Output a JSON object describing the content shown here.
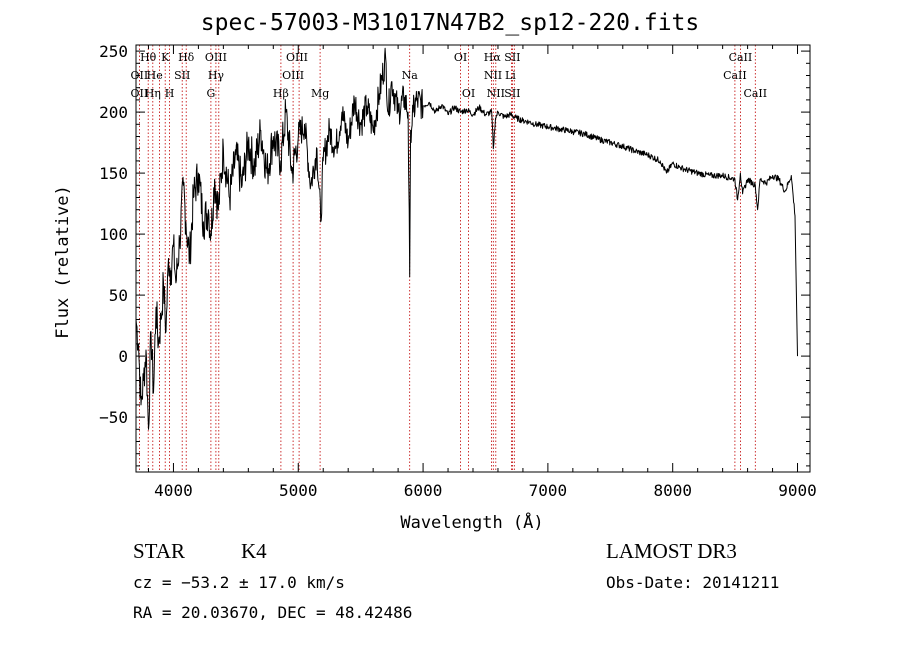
{
  "title": "spec-57003-M31017N47B2_sp12-220.fits",
  "object_class": "STAR",
  "subclass": "K4",
  "survey": "LAMOST DR3",
  "cz": "cz = −53.2 ± 17.0 km/s",
  "obs_date": "Obs-Date: 20141211",
  "radec": "RA =  20.03670, DEC =  48.42486",
  "chart_data": {
    "type": "line",
    "title": "spec-57003-M31017N47B2_sp12-220.fits",
    "xlabel": "Wavelength (Å)",
    "ylabel": "Flux (relative)",
    "xlim": [
      3700,
      9100
    ],
    "ylim": [
      -95,
      255
    ],
    "x_ticks": [
      4000,
      5000,
      6000,
      7000,
      8000,
      9000
    ],
    "y_ticks": [
      -50,
      0,
      50,
      100,
      150,
      200,
      250
    ],
    "y_tick_labels": [
      "−50",
      "0",
      "50",
      "100",
      "150",
      "200",
      "250"
    ],
    "series": [
      {
        "name": "flux",
        "x": [
          3700,
          3720,
          3740,
          3760,
          3780,
          3800,
          3820,
          3840,
          3860,
          3880,
          3900,
          3920,
          3940,
          3960,
          3980,
          4000,
          4020,
          4050,
          4080,
          4100,
          4130,
          4160,
          4200,
          4240,
          4280,
          4300,
          4330,
          4360,
          4400,
          4450,
          4500,
          4550,
          4600,
          4650,
          4700,
          4750,
          4800,
          4860,
          4900,
          4950,
          5000,
          5050,
          5100,
          5150,
          5180,
          5200,
          5250,
          5300,
          5350,
          5400,
          5450,
          5500,
          5550,
          5600,
          5650,
          5700,
          5720,
          5750,
          5800,
          5850,
          5880,
          5893,
          5900,
          5920,
          5950,
          6000,
          6050,
          6100,
          6150,
          6200,
          6250,
          6300,
          6350,
          6400,
          6450,
          6500,
          6550,
          6563,
          6580,
          6600,
          6650,
          6700,
          6750,
          6800,
          6850,
          6900,
          6950,
          7000,
          7050,
          7100,
          7150,
          7200,
          7300,
          7400,
          7500,
          7600,
          7700,
          7800,
          7900,
          7950,
          8000,
          8050,
          8100,
          8200,
          8300,
          8400,
          8498,
          8520,
          8542,
          8560,
          8600,
          8662,
          8680,
          8700,
          8750,
          8800,
          8850,
          8900,
          8950,
          8980,
          9000
        ],
        "y": [
          30,
          10,
          -40,
          -20,
          5,
          -60,
          20,
          -30,
          40,
          10,
          30,
          60,
          20,
          80,
          70,
          90,
          60,
          95,
          140,
          110,
          80,
          130,
          150,
          110,
          120,
          100,
          145,
          120,
          170,
          130,
          165,
          140,
          175,
          155,
          185,
          150,
          180,
          160,
          200,
          150,
          180,
          190,
          140,
          170,
          110,
          160,
          185,
          170,
          200,
          175,
          210,
          190,
          205,
          185,
          215,
          245,
          200,
          225,
          200,
          212,
          200,
          65,
          185,
          200,
          210,
          205,
          208,
          200,
          206,
          198,
          204,
          200,
          202,
          198,
          204,
          198,
          200,
          170,
          195,
          200,
          196,
          198,
          195,
          193,
          192,
          190,
          189,
          188,
          187,
          186,
          185,
          184,
          182,
          178,
          175,
          172,
          168,
          165,
          160,
          150,
          158,
          155,
          153,
          150,
          148,
          148,
          145,
          128,
          150,
          133,
          145,
          140,
          120,
          145,
          142,
          148,
          145,
          135,
          148,
          115,
          0
        ]
      }
    ],
    "lines": [
      {
        "name": "OII",
        "x": 3727,
        "labels": [
          "OII"
        ]
      },
      {
        "name": "Hθ",
        "x": 3798,
        "labels": [
          "Hθ"
        ]
      },
      {
        "name": "Hη",
        "x": 3835,
        "labels": [
          "Hη"
        ]
      },
      {
        "name": "He",
        "x": 3889,
        "labels": [
          "He"
        ]
      },
      {
        "name": "K",
        "x": 3934,
        "labels": [
          "K"
        ]
      },
      {
        "name": "H",
        "x": 3969,
        "labels": [
          "H"
        ]
      },
      {
        "name": "SII",
        "x": 4070,
        "labels": [
          "SII"
        ]
      },
      {
        "name": "Hδ",
        "x": 4102,
        "labels": [
          "Hδ"
        ]
      },
      {
        "name": "G",
        "x": 4300,
        "labels": [
          "G"
        ]
      },
      {
        "name": "Hγ",
        "x": 4340,
        "labels": [
          "Hγ"
        ]
      },
      {
        "name": "OIII",
        "x": 4363,
        "labels": [
          "OIII"
        ]
      },
      {
        "name": "Hβ",
        "x": 4861,
        "labels": [
          "Hβ"
        ]
      },
      {
        "name": "OIII",
        "x": 4959,
        "labels": [
          "OIII"
        ]
      },
      {
        "name": "OIII",
        "x": 5007,
        "labels": [
          "OIII"
        ]
      },
      {
        "name": "Mg",
        "x": 5175,
        "labels": [
          "Mg"
        ]
      },
      {
        "name": "Na",
        "x": 5893,
        "labels": [
          "Na"
        ]
      },
      {
        "name": "OI",
        "x": 6300,
        "labels": [
          "OI"
        ]
      },
      {
        "name": "OI",
        "x": 6364,
        "labels": [
          "OI"
        ]
      },
      {
        "name": "NII",
        "x": 6548,
        "labels": [
          "NII"
        ]
      },
      {
        "name": "Hα",
        "x": 6563,
        "labels": [
          "Hα"
        ]
      },
      {
        "name": "NII",
        "x": 6583,
        "labels": [
          "NII"
        ]
      },
      {
        "name": "Li",
        "x": 6708,
        "labels": [
          "Li"
        ]
      },
      {
        "name": "SII",
        "x": 6716,
        "labels": [
          "SII"
        ]
      },
      {
        "name": "SII",
        "x": 6731,
        "labels": [
          "SII"
        ]
      },
      {
        "name": "CaII",
        "x": 8498,
        "labels": [
          "CaII"
        ]
      },
      {
        "name": "CaII",
        "x": 8542,
        "labels": [
          "CaII"
        ]
      },
      {
        "name": "CaII",
        "x": 8662,
        "labels": [
          "CaII"
        ]
      }
    ],
    "line_labels": [
      {
        "text": "Hθ",
        "x": 3798,
        "row": 1
      },
      {
        "text": "K",
        "x": 3934,
        "row": 1
      },
      {
        "text": "Hδ",
        "x": 4102,
        "row": 1
      },
      {
        "text": "OIII",
        "x": 4340,
        "row": 1
      },
      {
        "text": "OIII",
        "x": 4990,
        "row": 1
      },
      {
        "text": "OI",
        "x": 6300,
        "row": 1
      },
      {
        "text": "Hα",
        "x": 6555,
        "row": 1
      },
      {
        "text": "SII",
        "x": 6716,
        "row": 1
      },
      {
        "text": "CaII",
        "x": 8542,
        "row": 1
      },
      {
        "text": "OII",
        "x": 3727,
        "row": 2
      },
      {
        "text": "He",
        "x": 3850,
        "row": 2
      },
      {
        "text": "SII",
        "x": 4070,
        "row": 2
      },
      {
        "text": "Hγ",
        "x": 4340,
        "row": 2
      },
      {
        "text": "OIII",
        "x": 4959,
        "row": 2
      },
      {
        "text": "Na",
        "x": 5893,
        "row": 2
      },
      {
        "text": "NII",
        "x": 6560,
        "row": 2
      },
      {
        "text": "Li",
        "x": 6700,
        "row": 2
      },
      {
        "text": "CaII",
        "x": 8498,
        "row": 2
      },
      {
        "text": "OII",
        "x": 3727,
        "row": 3
      },
      {
        "text": "Hη",
        "x": 3835,
        "row": 3
      },
      {
        "text": "H",
        "x": 3969,
        "row": 3
      },
      {
        "text": "G",
        "x": 4300,
        "row": 3
      },
      {
        "text": "Hβ",
        "x": 4861,
        "row": 3
      },
      {
        "text": "Mg",
        "x": 5175,
        "row": 3
      },
      {
        "text": "OI",
        "x": 6364,
        "row": 3
      },
      {
        "text": "NII",
        "x": 6583,
        "row": 3
      },
      {
        "text": "SII",
        "x": 6716,
        "row": 3
      },
      {
        "text": "CaII",
        "x": 8662,
        "row": 3
      }
    ],
    "colors": {
      "spectrum": "#000000",
      "lines": "#c00000",
      "axes": "#000000"
    }
  }
}
